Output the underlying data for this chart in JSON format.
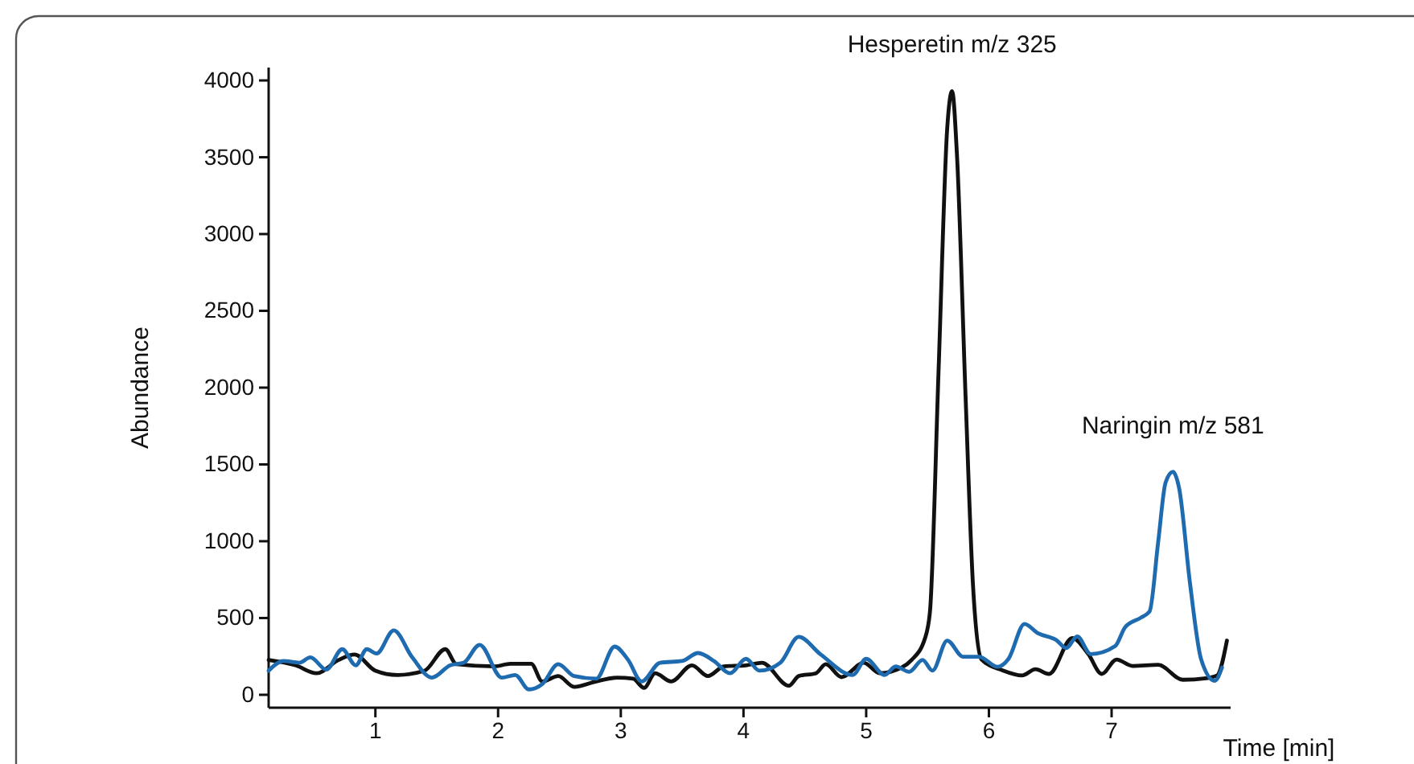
{
  "chart_data": {
    "type": "line",
    "xlabel": "Time [min]",
    "ylabel": "Abundance",
    "xlim": [
      0.13,
      7.97
    ],
    "ylim": [
      -84,
      4084
    ],
    "xticks": [
      1,
      2,
      3,
      4,
      5,
      6,
      7
    ],
    "yticks": [
      0,
      500,
      1000,
      1500,
      2000,
      2500,
      3000,
      3500,
      4000
    ],
    "grid": false,
    "marker": "none",
    "line_style": "solid",
    "annotations": [
      {
        "text": "Hesperetin m/z 325",
        "x": 5.7,
        "y": 3930
      },
      {
        "text": "Naringin m/z 581",
        "x": 7.5,
        "y": 1452
      }
    ],
    "series": [
      {
        "color": "#111111",
        "x": [
          0.13,
          0.35,
          0.52,
          0.7,
          0.83,
          1.0,
          1.18,
          1.4,
          1.57,
          1.66,
          1.97,
          2.1,
          2.27,
          2.36,
          2.49,
          2.62,
          2.8,
          2.97,
          3.1,
          3.19,
          3.28,
          3.41,
          3.58,
          3.71,
          3.84,
          4.02,
          4.15,
          4.37,
          4.45,
          4.59,
          4.67,
          4.8,
          4.98,
          5.11,
          5.29,
          5.37,
          5.48,
          5.52,
          5.59,
          5.66,
          5.7,
          5.74,
          5.81,
          5.87,
          5.94,
          6.11,
          6.27,
          6.38,
          6.49,
          6.68,
          6.81,
          6.92,
          7.04,
          7.17,
          7.38,
          7.58,
          7.77,
          7.86,
          7.94
        ],
        "values": [
          227,
          192,
          140,
          227,
          262,
          157,
          129,
          157,
          297,
          199,
          185,
          202,
          202,
          87,
          122,
          52,
          87,
          112,
          105,
          45,
          140,
          87,
          192,
          122,
          185,
          192,
          209,
          59,
          122,
          140,
          199,
          115,
          209,
          140,
          178,
          227,
          370,
          544,
          2115,
          3685,
          3930,
          3511,
          1940,
          720,
          230,
          160,
          126,
          167,
          136,
          370,
          265,
          136,
          230,
          188,
          195,
          98,
          108,
          126,
          353
        ]
      },
      {
        "color": "#1f6bb0",
        "x": [
          0.13,
          0.25,
          0.38,
          0.47,
          0.6,
          0.73,
          0.84,
          0.93,
          1.01,
          1.15,
          1.3,
          1.46,
          1.61,
          1.72,
          1.85,
          2.03,
          2.14,
          2.25,
          2.36,
          2.49,
          2.62,
          2.8,
          2.95,
          3.06,
          3.17,
          3.32,
          3.5,
          3.63,
          3.76,
          3.89,
          4.02,
          4.13,
          4.3,
          4.45,
          4.63,
          4.89,
          5.0,
          5.15,
          5.24,
          5.35,
          5.46,
          5.54,
          5.66,
          5.79,
          5.92,
          6.07,
          6.16,
          6.29,
          6.4,
          6.55,
          6.63,
          6.72,
          6.83,
          7.03,
          7.11,
          7.24,
          7.31,
          7.38,
          7.44,
          7.5,
          7.55,
          7.64,
          7.73,
          7.84,
          7.9
        ],
        "values": [
          157,
          220,
          209,
          244,
          164,
          297,
          192,
          297,
          269,
          419,
          244,
          112,
          192,
          209,
          325,
          112,
          129,
          35,
          70,
          199,
          122,
          105,
          314,
          227,
          87,
          209,
          220,
          272,
          220,
          140,
          234,
          157,
          209,
          377,
          262,
          129,
          234,
          129,
          185,
          150,
          227,
          157,
          353,
          248,
          248,
          182,
          234,
          461,
          401,
          356,
          304,
          380,
          265,
          318,
          440,
          503,
          544,
          998,
          1382,
          1452,
          1347,
          719,
          230,
          91,
          178
        ]
      }
    ]
  }
}
